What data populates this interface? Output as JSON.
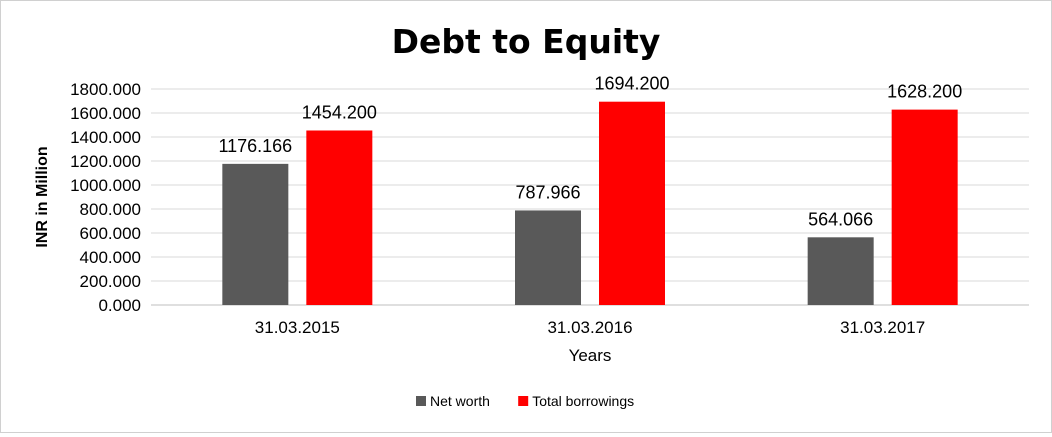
{
  "chart_data": {
    "type": "bar",
    "title": "Debt to Equity",
    "xlabel": "Years",
    "ylabel": "INR in Million",
    "categories": [
      "31.03.2015",
      "31.03.2016",
      "31.03.2017"
    ],
    "series": [
      {
        "name": "Net worth",
        "values": [
          1176.166,
          787.966,
          564.066
        ],
        "color": "#595959"
      },
      {
        "name": "Total borrowings",
        "values": [
          1454.2,
          1694.2,
          1628.2
        ],
        "color": "#ff0000"
      }
    ],
    "ylim": [
      0,
      1800
    ],
    "y_ticks": [
      "0.000",
      "200.000",
      "400.000",
      "600.000",
      "800.000",
      "1000.000",
      "1200.000",
      "1400.000",
      "1600.000",
      "1800.000"
    ],
    "data_labels": [
      [
        "1176.166",
        "787.966",
        "564.066"
      ],
      [
        "1454.200",
        "1694.200",
        "1628.200"
      ]
    ],
    "grid": true,
    "legend_position": "bottom"
  }
}
